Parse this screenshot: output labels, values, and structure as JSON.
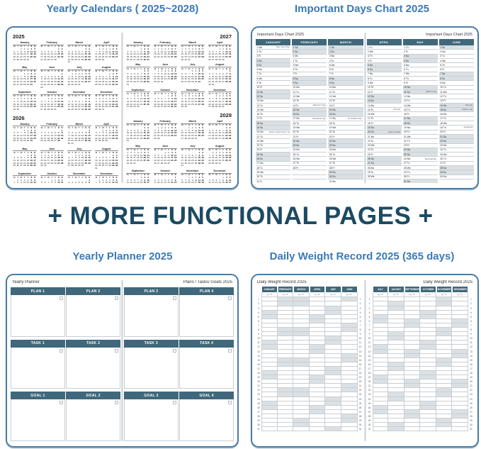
{
  "month_order": [
    "JANUARY",
    "FEBRUARY",
    "MARCH",
    "APRIL",
    "MAY",
    "JUNE",
    "JULY",
    "AUGUST",
    "SEPTEMBER",
    "OCTOBER",
    "NOVEMBER",
    "DECEMBER"
  ],
  "sections": {
    "headline": "+ MORE FUNCTIONAL PAGES +",
    "yearly_calendars": {
      "title": "Yearly Calendars ( 2025~2028)",
      "month_names": [
        "January",
        "February",
        "March",
        "April",
        "May",
        "June",
        "July",
        "August",
        "September",
        "October",
        "November",
        "December"
      ],
      "weekday_header": [
        "M",
        "T",
        "W",
        "T",
        "F",
        "S",
        "S"
      ],
      "pages": [
        {
          "years": [
            2025,
            2026
          ],
          "year_align": "left"
        },
        {
          "years": [
            2027,
            2028
          ],
          "year_align": "right"
        }
      ]
    },
    "important_days": {
      "title": "Important Days Chart 2025",
      "page_title": "Important Days Chart 2025",
      "year": 2025,
      "weekday_abbr": [
        "Su",
        "Mo",
        "Tu",
        "We",
        "Th",
        "Fr",
        "Sa"
      ],
      "pages": [
        {
          "months": [
            "JANUARY",
            "FEBRUARY",
            "MARCH"
          ],
          "title_align": "left"
        },
        {
          "months": [
            "APRIL",
            "MAY",
            "JUNE"
          ],
          "title_align": "right"
        }
      ],
      "holidays": {
        "1-1": "New Year's Day",
        "1-20": "Martin Luther King Jr. Day",
        "2-14": "Valentine's Day",
        "2-17": "Presidents' Day",
        "3-17": "St. Patrick's Day",
        "4-15": "Tax Day",
        "4-20": "Easter Sunday",
        "5-11": "Mother's Day",
        "5-26": "Memorial Day",
        "6-14": "Flag Day",
        "6-15": "Father's Day",
        "6-19": "Juneteenth"
      }
    },
    "yearly_planner": {
      "title": "Yearly Planner 2025",
      "left_page_label": "Yearly Planner",
      "right_page_label": "Plans / Tasks/ Goals 2025",
      "pages": [
        {
          "sections": [
            [
              "PLAN 1",
              "PLAN 2"
            ],
            [
              "TASK 1",
              "TASK 2"
            ],
            [
              "GOAL 1",
              "GOAL 2"
            ]
          ]
        },
        {
          "sections": [
            [
              "PLAN 3",
              "PLAN 4"
            ],
            [
              "TASK 3",
              "TASK 4"
            ],
            [
              "GOAL 3",
              "GOAL 4"
            ]
          ]
        }
      ]
    },
    "weight_record": {
      "title": "Daily Weight Record 2025 (365 days)",
      "page_title": "Daily Weight Record 2025",
      "unit_label": "kg / lb",
      "year": 2025,
      "rows": 31,
      "pages": [
        {
          "months": [
            "JANUARY",
            "FEBRUARY",
            "MARCH",
            "APRIL",
            "MAY",
            "JUNE"
          ],
          "title_align": "left"
        },
        {
          "months": [
            "JULY",
            "AUGUST",
            "SEPTEMBER",
            "OCTOBER",
            "NOVEMBER",
            "DECEMBER"
          ],
          "title_align": "right"
        }
      ]
    }
  },
  "colors": {
    "title_blue": "#3a7ab8",
    "headline": "#1c4a63",
    "frame_border": "#4a7ca6",
    "header_bar": "#40687a",
    "weekend_shade": "#dae0e3",
    "grid_line": "#c9cfd4"
  }
}
